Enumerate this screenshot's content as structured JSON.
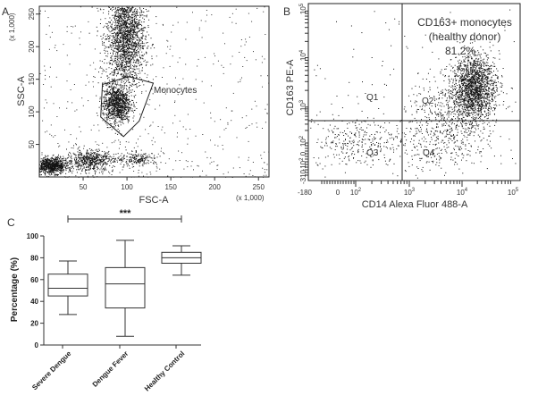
{
  "chart_data": [
    {
      "panel": "A",
      "type": "scatter",
      "xlabel": "FSC-A",
      "ylabel": "SSC-A",
      "x_multiplier": "(x 1,000)",
      "y_multiplier": "(x 1,000)",
      "xlim": [
        0,
        262
      ],
      "ylim": [
        0,
        262
      ],
      "x_ticks": [
        50,
        100,
        150,
        200,
        250
      ],
      "y_ticks": [
        50,
        100,
        150,
        200,
        250
      ],
      "gate_label": "Monocytes",
      "gate_polygon": [
        [
          72,
          142
        ],
        [
          102,
          154
        ],
        [
          130,
          144
        ],
        [
          114,
          86
        ],
        [
          96,
          62
        ],
        [
          70,
          92
        ]
      ],
      "populations": [
        {
          "name": "",
          "center": [
            98,
            215
          ],
          "spread": [
            11,
            40
          ],
          "points": 2000
        },
        {
          "name": "",
          "center": [
            88,
            112
          ],
          "spread": [
            8,
            15
          ],
          "points": 1000
        },
        {
          "name": "",
          "center": [
            14,
            18
          ],
          "spread": [
            9,
            6
          ],
          "points": 850
        },
        {
          "name": "",
          "center": [
            58,
            26
          ],
          "spread": [
            13,
            8
          ],
          "points": 550
        },
        {
          "name": "",
          "center": [
            112,
            28
          ],
          "spread": [
            12,
            5
          ],
          "points": 200
        }
      ]
    },
    {
      "panel": "B",
      "type": "scatter",
      "xlabel": "CD14 Alexa Fluor 488-A",
      "ylabel": "CD163 PE-A",
      "scale": "biexponential",
      "x_ticks": [
        "-180",
        "0",
        "10^2",
        "10^3",
        "10^4",
        "10^5"
      ],
      "y_ticks": [
        "10^5",
        "10^4",
        "10^3",
        "10^2",
        "0",
        "-10^2",
        "-310"
      ],
      "quadrants": [
        "Q1",
        "Q2",
        "Q3",
        "Q4"
      ],
      "annotation": [
        "CD163+ monocytes",
        "(healthy donor)",
        "81.2%"
      ]
    },
    {
      "panel": "C",
      "type": "box",
      "ylabel": "Percentage (%)",
      "ylim": [
        0,
        100
      ],
      "y_ticks": [
        0,
        20,
        40,
        60,
        80,
        100
      ],
      "categories": [
        "Severe Dengue",
        "Dengue Fever",
        "Healthy Control"
      ],
      "boxes": [
        {
          "min": 28,
          "q1": 45,
          "median": 52,
          "q3": 65,
          "max": 77
        },
        {
          "min": 8,
          "q1": 34,
          "median": 56,
          "q3": 71,
          "max": 96
        },
        {
          "min": 64,
          "q1": 75,
          "median": 80,
          "q3": 85,
          "max": 91
        }
      ],
      "significance": "***"
    }
  ],
  "panel_labels": {
    "a": "A",
    "b": "B",
    "c": "C"
  }
}
